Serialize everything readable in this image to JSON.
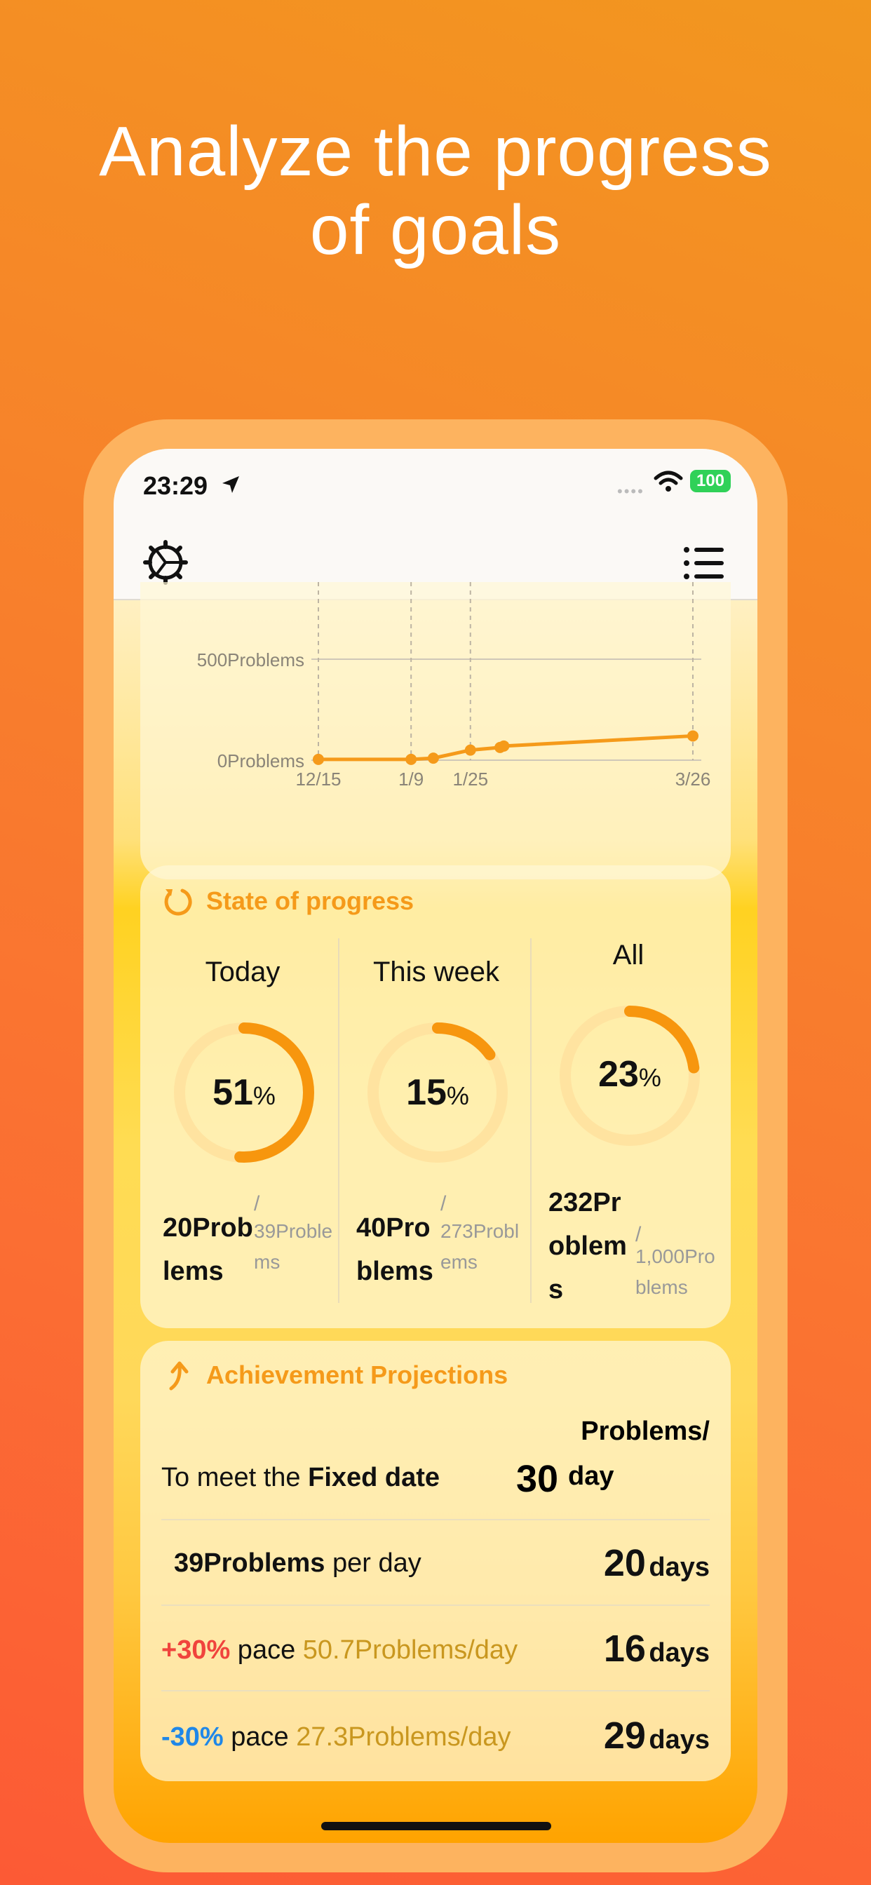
{
  "headline": {
    "line1": "Analyze the progress",
    "line2": "of goals"
  },
  "status_bar": {
    "time": "23:29",
    "battery": "100",
    "icons": [
      "location-arrow-icon",
      "wifi-icon",
      "battery-icon"
    ]
  },
  "nav": {
    "left_icon": "gear-icon",
    "right_icon": "list-icon"
  },
  "chart_data": {
    "type": "line",
    "ytick_labels": [
      "500Problems",
      "0Problems"
    ],
    "yticks": [
      500,
      0
    ],
    "xtick_labels": [
      "12/15",
      "1/9",
      "1/25",
      "3/26"
    ],
    "xticks": [
      0,
      25,
      41,
      101
    ],
    "ylim": [
      0,
      600
    ],
    "xlim": [
      0,
      101
    ],
    "series": [
      {
        "x": [
          0,
          25,
          31,
          41,
          49,
          50,
          101
        ],
        "values": [
          4,
          4,
          10,
          50,
          63,
          70,
          120
        ]
      }
    ],
    "grid": true,
    "color": "#f59a1a"
  },
  "progress": {
    "title": "State of progress",
    "icon": "refresh-icon",
    "columns": [
      {
        "label": "Today",
        "percent_value": "51",
        "percent_sign": "%",
        "fraction": 0.51,
        "amount": "20Problems",
        "slash": "/",
        "total": "39Problems"
      },
      {
        "label": "This week",
        "percent_value": "15",
        "percent_sign": "%",
        "fraction": 0.15,
        "amount": "40Problems",
        "slash": "/",
        "total": "273Problems"
      },
      {
        "label": "All",
        "percent_value": "23",
        "percent_sign": "%",
        "fraction": 0.23,
        "amount": "232Problems",
        "slash": "/",
        "total": "1,000Problems"
      }
    ]
  },
  "projections": {
    "title": "Achievement Projections",
    "icon": "arrow-up-icon",
    "fixed_row": {
      "prefix": "To meet the ",
      "bold": "Fixed date",
      "number": "30",
      "unit_top": "Problems/",
      "unit_bottom": "day"
    },
    "rows": [
      {
        "lead": "39Problems",
        "middle": " per day",
        "pace": "",
        "number": "20",
        "unit": "days"
      },
      {
        "lead": "+30%",
        "middle": " pace ",
        "pace": "50.7Problems/day",
        "number": "16",
        "unit": "days"
      },
      {
        "lead": "-30%",
        "middle": " pace ",
        "pace": "27.3Problems/day",
        "number": "29",
        "unit": "days"
      }
    ]
  },
  "colors": {
    "accent": "#f59a1a",
    "positive": "#f0443d",
    "negative": "#1f87e8",
    "pace_text": "#c9971f",
    "ring_track": "#ffe3a0"
  }
}
